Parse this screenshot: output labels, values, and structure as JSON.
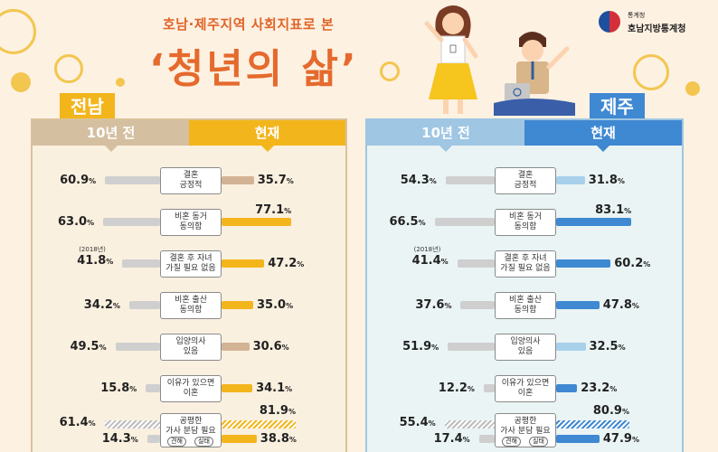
{
  "header": {
    "subtitle": "호남·제주지역 사회지표로 본",
    "title": "‘청년의 삶’"
  },
  "logo": {
    "small": "통계청",
    "name": "호남지방통계청"
  },
  "colors": {
    "jeonnam_accent": "#f3b51c",
    "jeonnam_past_head": "#d4bfa0",
    "jeonnam_bg": "#faf0df",
    "jeju_accent": "#3f88d2",
    "jeju_past_head": "#9fc6e3",
    "jeju_bg": "#eaf4f4",
    "past_bar": "#cfcfcf"
  },
  "regions": [
    {
      "name": "전남",
      "head_past": "10년 전",
      "head_now": "현재",
      "rows": [
        {
          "label": "결혼\n긍정적",
          "past": "60.9",
          "now": "35.7",
          "past_v": 60.9,
          "now_v": 35.7,
          "now_style": "muted"
        },
        {
          "label": "비혼 동거\n동의함",
          "past": "63.0",
          "now": "77.1",
          "past_v": 63.0,
          "now_v": 77.1,
          "now_style": "accent"
        },
        {
          "label": "결혼 후 자녀\n가질 필요 없음",
          "past": "41.8",
          "now": "47.2",
          "past_v": 41.8,
          "now_v": 47.2,
          "now_style": "accent",
          "note": "(2018년)"
        },
        {
          "label": "비혼 출산\n동의함",
          "past": "34.2",
          "now": "35.0",
          "past_v": 34.2,
          "now_v": 35.0,
          "now_style": "accent"
        },
        {
          "label": "입양의사\n있음",
          "past": "49.5",
          "now": "30.6",
          "past_v": 49.5,
          "now_v": 30.6,
          "now_style": "muted"
        },
        {
          "label": "이유가 있으면\n이혼",
          "past": "15.8",
          "now": "34.1",
          "past_v": 15.8,
          "now_v": 34.1,
          "now_style": "accent"
        }
      ],
      "last": {
        "label": "공평한\n가사 분담 필요",
        "opinion_label": "견해",
        "actual_label": "실태",
        "past_opinion": "61.4",
        "past_actual": "14.3",
        "now_opinion": "81.9",
        "now_actual": "38.8",
        "past_opinion_v": 61.4,
        "past_actual_v": 14.3,
        "now_opinion_v": 81.9,
        "now_actual_v": 38.8
      }
    },
    {
      "name": "제주",
      "head_past": "10년 전",
      "head_now": "현재",
      "rows": [
        {
          "label": "결혼\n긍정적",
          "past": "54.3",
          "now": "31.8",
          "past_v": 54.3,
          "now_v": 31.8,
          "now_style": "muted"
        },
        {
          "label": "비혼 동거\n동의함",
          "past": "66.5",
          "now": "83.1",
          "past_v": 66.5,
          "now_v": 83.1,
          "now_style": "accent"
        },
        {
          "label": "결혼 후 자녀\n가질 필요 없음",
          "past": "41.4",
          "now": "60.2",
          "past_v": 41.4,
          "now_v": 60.2,
          "now_style": "accent",
          "note": "(2018년)"
        },
        {
          "label": "비혼 출산\n동의함",
          "past": "37.6",
          "now": "47.8",
          "past_v": 37.6,
          "now_v": 47.8,
          "now_style": "accent"
        },
        {
          "label": "입양의사\n있음",
          "past": "51.9",
          "now": "32.5",
          "past_v": 51.9,
          "now_v": 32.5,
          "now_style": "muted"
        },
        {
          "label": "이유가 있으면\n이혼",
          "past": "12.2",
          "now": "23.2",
          "past_v": 12.2,
          "now_v": 23.2,
          "now_style": "accent"
        }
      ],
      "last": {
        "label": "공평한\n가사 분담 필요",
        "opinion_label": "견해",
        "actual_label": "실태",
        "past_opinion": "55.4",
        "past_actual": "17.4",
        "now_opinion": "80.9",
        "now_actual": "47.9",
        "past_opinion_v": 55.4,
        "past_actual_v": 17.4,
        "now_opinion_v": 80.9,
        "now_actual_v": 47.9
      }
    }
  ],
  "unit": "%",
  "illustration": {
    "laptop_icon": "power-icon"
  }
}
